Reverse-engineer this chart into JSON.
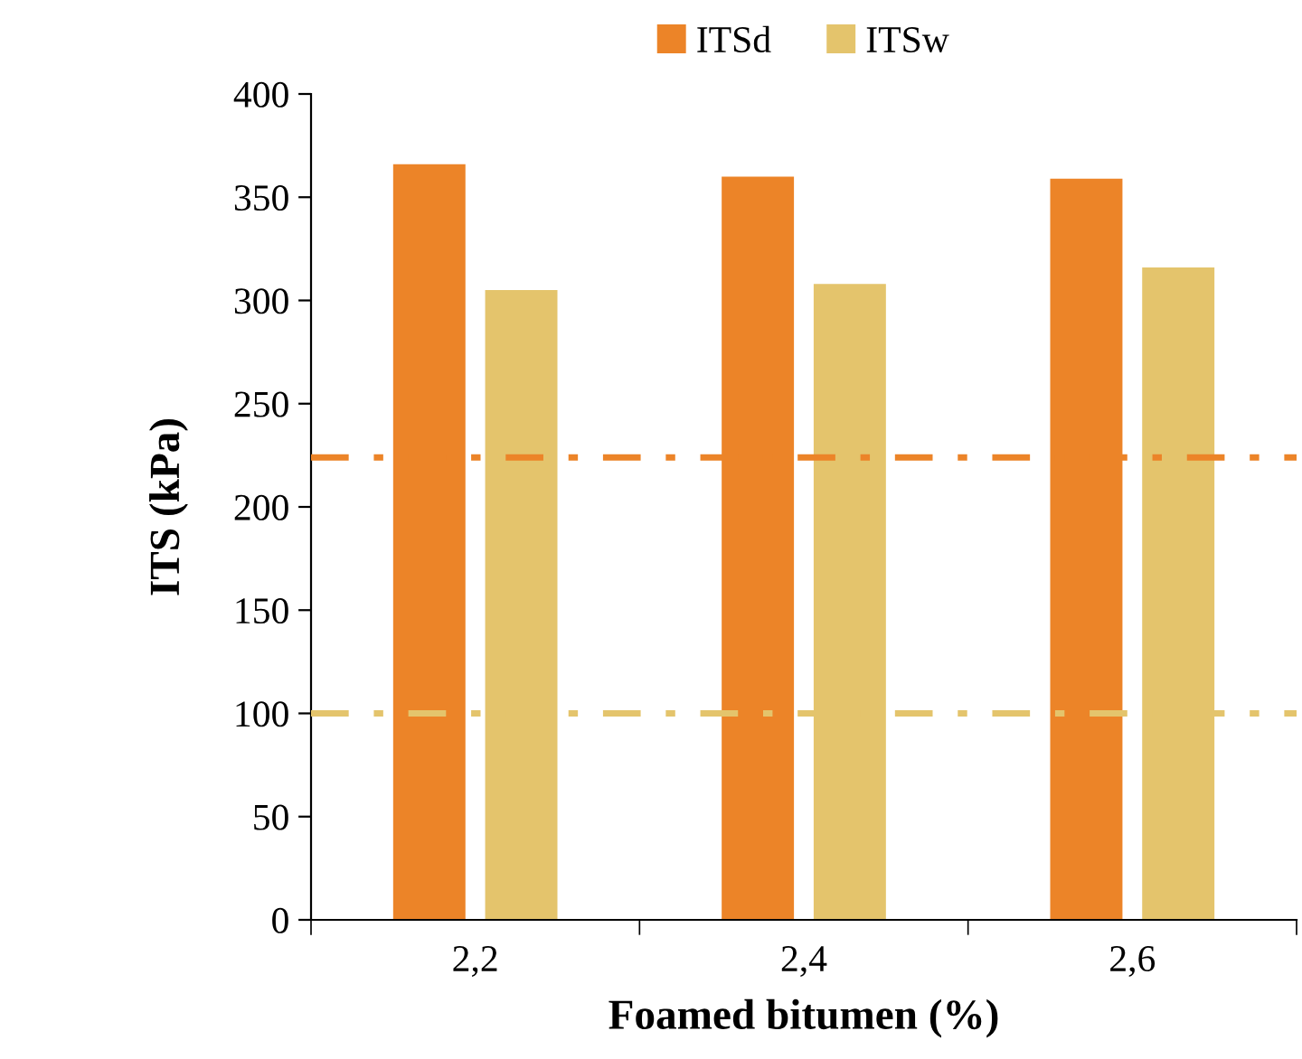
{
  "chart_data": {
    "type": "bar",
    "xlabel": "Foamed bitumen (%)",
    "ylabel": "ITS (kPa)",
    "categories": [
      "2,2",
      "2,4",
      "2,6"
    ],
    "series": [
      {
        "name": "ITSd",
        "color": "#ec8428",
        "values": [
          366,
          360,
          359
        ]
      },
      {
        "name": "ITSw",
        "color": "#e4c46c",
        "values": [
          305,
          308,
          316
        ]
      }
    ],
    "ylim": [
      0,
      400
    ],
    "yticks": [
      0,
      50,
      100,
      150,
      200,
      250,
      300,
      350,
      400
    ],
    "ref_lines": [
      {
        "axis": "y",
        "value": 224,
        "color": "#ec8428",
        "line_style": "dashdot"
      },
      {
        "axis": "y",
        "value": 100,
        "color": "#e4c46c",
        "line_style": "dashdot"
      }
    ],
    "grid": false,
    "legend": "top"
  }
}
